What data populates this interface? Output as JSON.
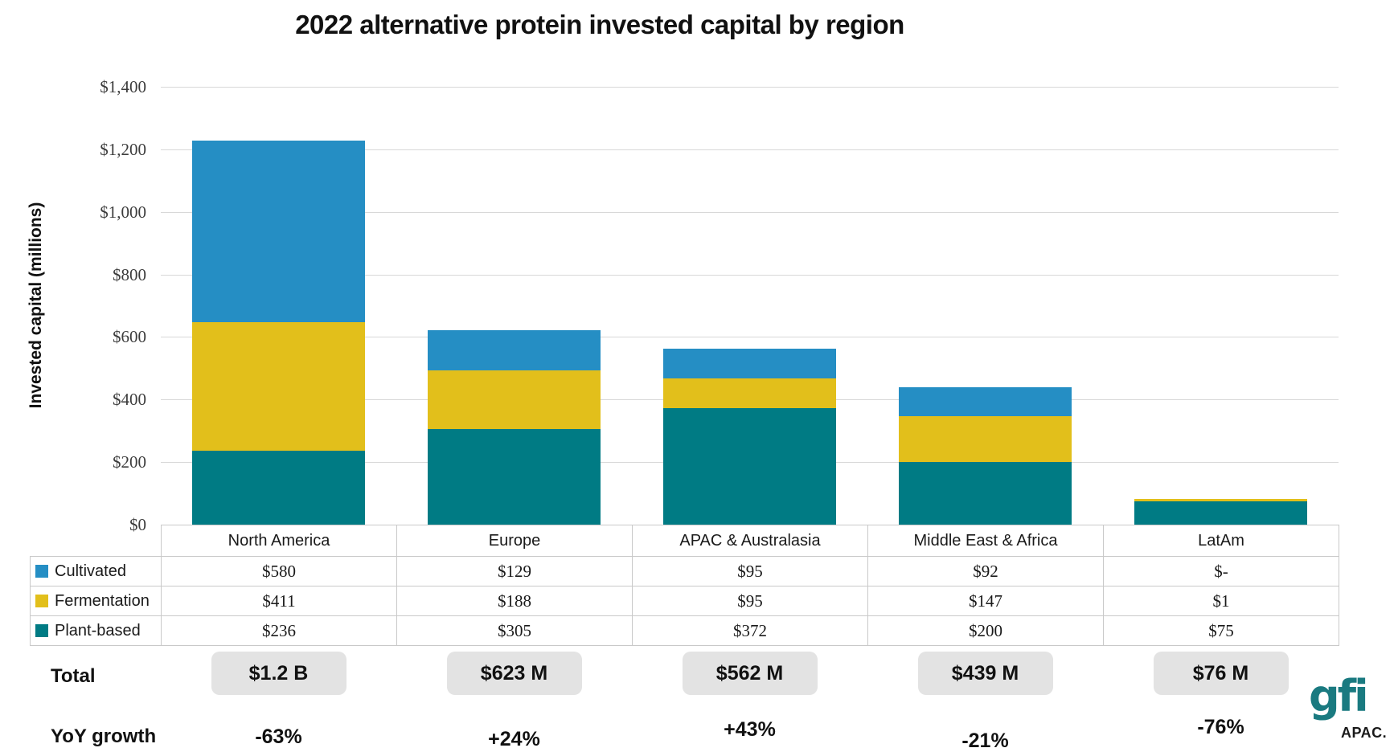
{
  "chart_data": {
    "type": "bar",
    "stacked": true,
    "title": "2022 alternative protein invested capital by region",
    "ylabel": "Invested capital (millions)",
    "ylim": [
      0,
      1400
    ],
    "grid": true,
    "legend_position": "table-left",
    "y_tick_labels": [
      "$0",
      "$200",
      "$400",
      "$600",
      "$800",
      "$1,000",
      "$1,200",
      "$1,400"
    ],
    "categories": [
      "North America",
      "Europe",
      "APAC & Australasia",
      "Middle East & Africa",
      "LatAm"
    ],
    "series": [
      {
        "name": "Cultivated",
        "color": "#258EC4",
        "values": [
          580,
          129,
          95,
          92,
          0
        ],
        "labels": [
          "$580",
          "$129",
          "$95",
          "$92",
          "$-"
        ]
      },
      {
        "name": "Fermentation",
        "color": "#E2BF1B",
        "values": [
          411,
          188,
          95,
          147,
          1
        ],
        "labels": [
          "$411",
          "$188",
          "$95",
          "$147",
          "$1"
        ]
      },
      {
        "name": "Plant-based",
        "color": "#007B84",
        "values": [
          236,
          305,
          372,
          200,
          75
        ],
        "labels": [
          "$236",
          "$305",
          "$372",
          "$200",
          "$75"
        ]
      }
    ],
    "totals": {
      "label": "Total",
      "values": [
        "$1.2 B",
        "$623 M",
        "$562 M",
        "$439 M",
        "$76 M"
      ]
    },
    "yoy_growth": {
      "label": "YoY growth",
      "values": [
        "-63%",
        "+24%",
        "+43%",
        "-21%",
        "-76%"
      ]
    }
  },
  "logo": {
    "text": "gfi",
    "region": "APAC."
  },
  "colors": {
    "cultivated": "#258EC4",
    "fermentation": "#E2BF1B",
    "plant_based": "#007B84",
    "gridline": "#D8D8D8",
    "table_border": "#C9C9C9",
    "badge_bg": "#E3E3E3",
    "logo_teal": "#1A7A80"
  }
}
